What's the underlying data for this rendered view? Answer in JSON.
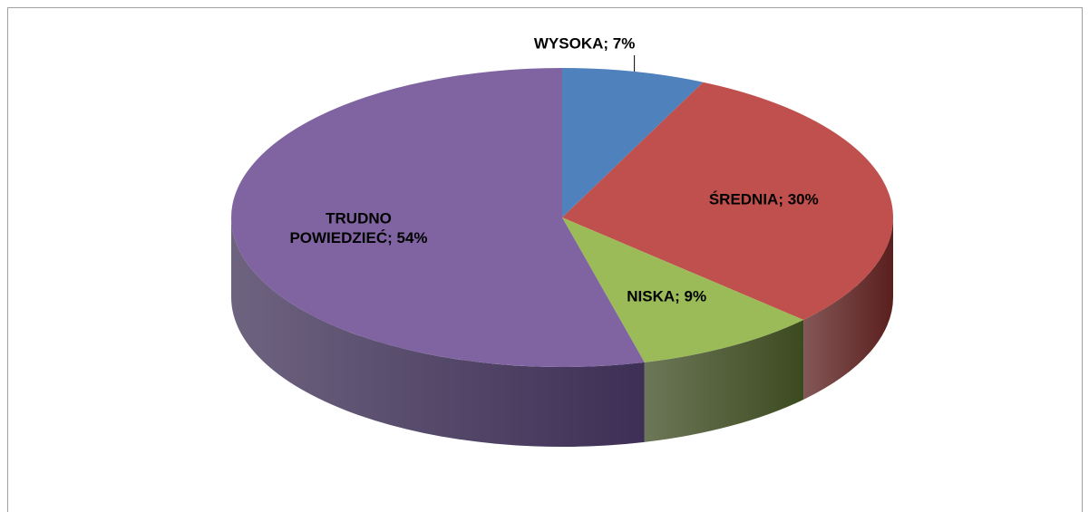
{
  "chart_data": {
    "type": "pie",
    "values": [
      7,
      30,
      9,
      54
    ],
    "value_labels": [
      "WYSOKA; 7%",
      "ŚREDNIA; 30%",
      "NISKA; 9%",
      "TRUDNO POWIEDZIEĆ; 54%"
    ],
    "colors": [
      "#4f81bd",
      "#c0504d",
      "#9bbb59",
      "#8064a2"
    ],
    "side_colors": [
      "#2c4d75",
      "#5a1f1e",
      "#3c4a20",
      "#3d2f55"
    ]
  }
}
